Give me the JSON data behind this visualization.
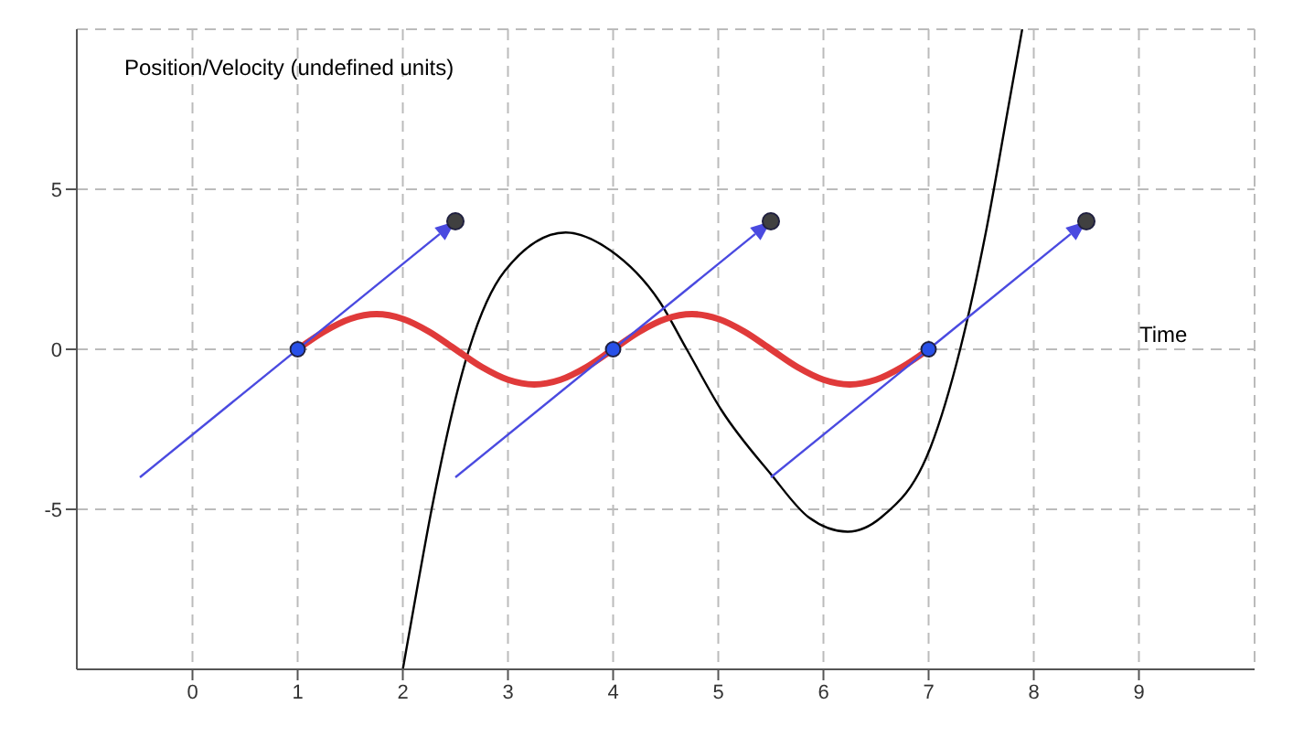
{
  "chart_data": {
    "type": "line",
    "xlabel": "Time",
    "ylabel": "Position/Velocity (undefined units)",
    "xlim": [
      -1.1,
      10.1
    ],
    "ylim": [
      -10,
      10
    ],
    "xticks": [
      0,
      1,
      2,
      3,
      4,
      5,
      6,
      7,
      8,
      9
    ],
    "yticks": [
      -5,
      0,
      5
    ],
    "grid": true,
    "series": [
      {
        "color": "#000000",
        "marker": "none",
        "x": [
          2.0,
          2.14,
          2.28,
          2.63,
          2.97,
          3.55,
          3.97,
          4.44,
          4.7,
          5.03,
          5.5,
          5.86,
          6.23,
          6.55,
          7.02,
          7.3,
          7.55,
          7.76,
          7.89
        ],
        "values": [
          -10,
          -7.4,
          -4.9,
          0,
          2.45,
          3.65,
          3.1,
          1.5,
          0,
          -1.9,
          -3.9,
          -5.25,
          -5.7,
          -5.25,
          -3.05,
          0,
          3.75,
          7.6,
          10
        ]
      },
      {
        "color": "#e03a3a",
        "marker": "none",
        "x": [
          1,
          1.25,
          1.5,
          1.75,
          2,
          2.25,
          2.5,
          2.75,
          3,
          3.25,
          3.5,
          3.75,
          4,
          4.25,
          4.5,
          4.75,
          5,
          5.25,
          5.5,
          5.75,
          6,
          6.25,
          6.5,
          6.75,
          7
        ],
        "values": [
          0,
          0.55,
          0.95,
          1.1,
          0.95,
          0.55,
          0,
          -0.55,
          -0.95,
          -1.1,
          -0.95,
          -0.55,
          0,
          0.55,
          0.95,
          1.1,
          0.95,
          0.55,
          0,
          -0.55,
          -0.95,
          -1.1,
          -0.95,
          -0.55,
          0
        ]
      },
      {
        "type": "scatter",
        "color": "#2850e8",
        "marker": "circle",
        "x": [
          1,
          4,
          7
        ],
        "values": [
          0,
          0,
          0
        ]
      },
      {
        "type": "scatter",
        "color": "#404040",
        "marker": "circle",
        "x": [
          2.5,
          5.5,
          8.5
        ],
        "values": [
          4,
          4,
          4
        ]
      }
    ]
  }
}
